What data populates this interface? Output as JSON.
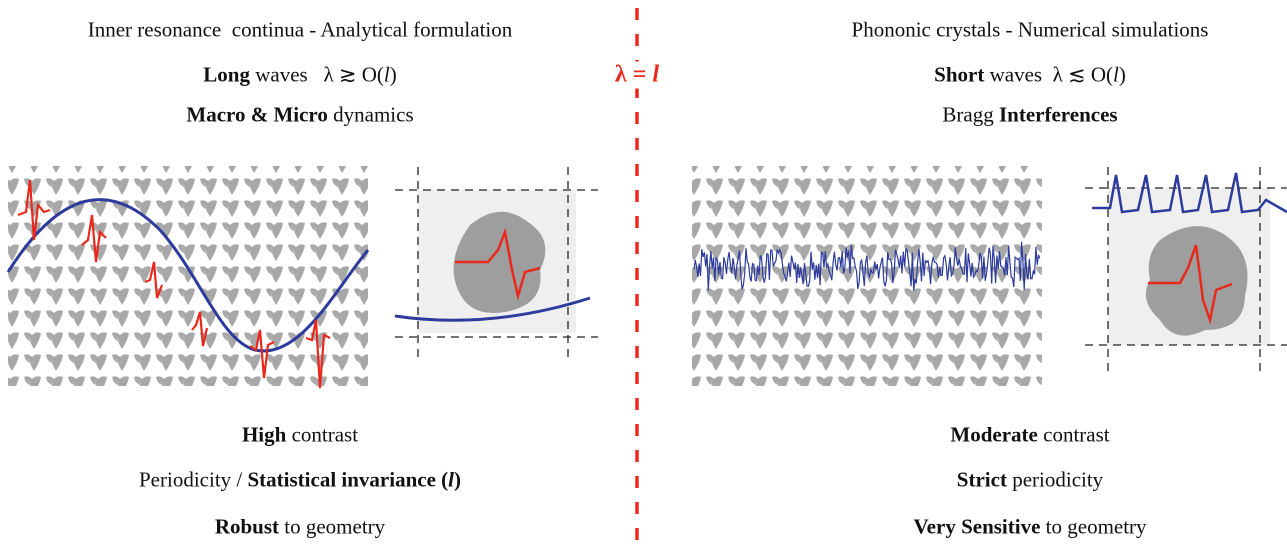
{
  "left": {
    "lines": [
      [
        "Inner resonance  continua - Analytical formulation"
      ],
      [
        "Long",
        " waves   λ ≳ O(",
        "l",
        ")"
      ],
      [
        "Macro & Micro",
        " dynamics"
      ],
      [
        "High",
        " contrast"
      ],
      [
        "Periodicity / ",
        "Statistical invariance (",
        "l",
        ")"
      ],
      [
        "Robust",
        " to geometry"
      ]
    ]
  },
  "center": {
    "label": [
      "λ = ",
      "l"
    ]
  },
  "right": {
    "lines": [
      [
        "Phononic crystals - Numerical simulations"
      ],
      [
        "Short",
        " waves  λ ≲ O(",
        "l",
        ")"
      ],
      [
        "Bragg ",
        "Interferences"
      ],
      [
        "Moderate",
        " contrast"
      ],
      [
        "Strict",
        " periodicity"
      ],
      [
        "Very Sensitive",
        " to geometry"
      ]
    ]
  }
}
